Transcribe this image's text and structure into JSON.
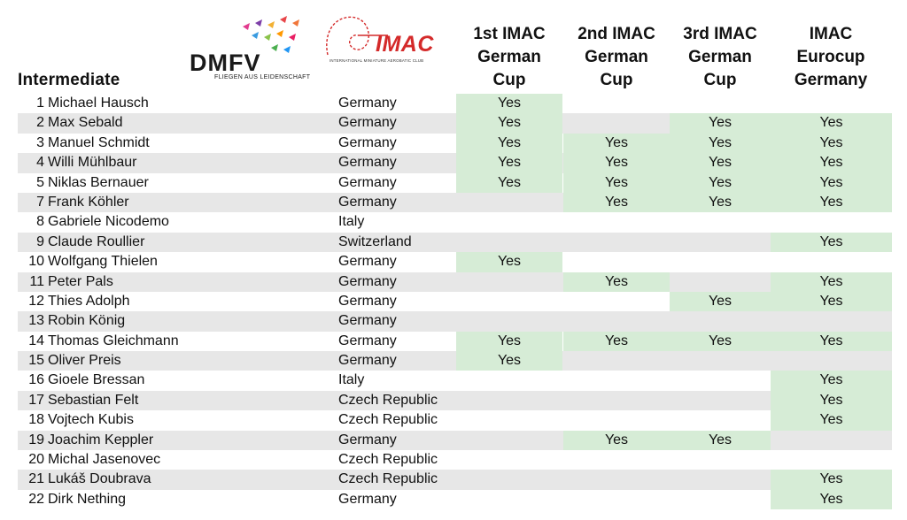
{
  "title": "Intermediate",
  "logos": {
    "dmfv_word": "DMFV",
    "dmfv_sub": "FLIEGEN AUS LEIDENSCHAFT",
    "imac_word": "IMAC",
    "imac_sub": "INTERNATIONAL MINIATURE AEROBATIC CLUB"
  },
  "columns": [
    {
      "lines": [
        "1st IMAC",
        "German",
        "Cup"
      ]
    },
    {
      "lines": [
        "2nd IMAC",
        "German",
        "Cup"
      ]
    },
    {
      "lines": [
        "3rd IMAC",
        "German",
        "Cup"
      ]
    },
    {
      "lines": [
        "IMAC",
        "Eurocup",
        "Germany"
      ]
    }
  ],
  "colors": {
    "grey": "#e7e7e7",
    "green": "#d6ecd6"
  },
  "rows": [
    {
      "num": "1",
      "name": "Michael Hausch",
      "country": "Germany",
      "grey": false,
      "cups": [
        "Yes",
        "",
        "",
        ""
      ]
    },
    {
      "num": "2",
      "name": "Max Sebald",
      "country": "Germany",
      "grey": true,
      "cups": [
        "Yes",
        "",
        "Yes",
        "Yes"
      ]
    },
    {
      "num": "3",
      "name": "Manuel Schmidt",
      "country": "Germany",
      "grey": false,
      "cups": [
        "Yes",
        "Yes",
        "Yes",
        "Yes"
      ]
    },
    {
      "num": "4",
      "name": "Willi Mühlbaur",
      "country": "Germany",
      "grey": true,
      "cups": [
        "Yes",
        "Yes",
        "Yes",
        "Yes"
      ]
    },
    {
      "num": "5",
      "name": "Niklas Bernauer",
      "country": "Germany",
      "grey": false,
      "cups": [
        "Yes",
        "Yes",
        "Yes",
        "Yes"
      ]
    },
    {
      "num": "7",
      "name": "Frank Köhler",
      "country": "Germany",
      "grey": true,
      "cups": [
        "",
        "Yes",
        "Yes",
        "Yes"
      ]
    },
    {
      "num": "8",
      "name": "Gabriele Nicodemo",
      "country": "Italy",
      "grey": false,
      "cups": [
        "",
        "",
        "",
        ""
      ]
    },
    {
      "num": "9",
      "name": "Claude Roullier",
      "country": "Switzerland",
      "grey": true,
      "cups": [
        "",
        "",
        "",
        "Yes"
      ]
    },
    {
      "num": "10",
      "name": "Wolfgang Thielen",
      "country": "Germany",
      "grey": false,
      "cups": [
        "Yes",
        "",
        "",
        ""
      ]
    },
    {
      "num": "11",
      "name": "Peter Pals",
      "country": "Germany",
      "grey": true,
      "cups": [
        "",
        "Yes",
        "",
        "Yes"
      ]
    },
    {
      "num": "12",
      "name": "Thies Adolph",
      "country": "Germany",
      "grey": false,
      "cups": [
        "",
        "",
        "Yes",
        "Yes"
      ]
    },
    {
      "num": "13",
      "name": "Robin König",
      "country": "Germany",
      "grey": true,
      "cups": [
        "",
        "",
        "",
        ""
      ]
    },
    {
      "num": "14",
      "name": "Thomas Gleichmann",
      "country": "Germany",
      "grey": false,
      "cups": [
        "Yes",
        "Yes",
        "Yes",
        "Yes"
      ]
    },
    {
      "num": "15",
      "name": "Oliver Preis",
      "country": "Germany",
      "grey": true,
      "cups": [
        "Yes",
        "",
        "",
        ""
      ]
    },
    {
      "num": "16",
      "name": "Gioele Bressan",
      "country": "Italy",
      "grey": false,
      "cups": [
        "",
        "",
        "",
        "Yes"
      ]
    },
    {
      "num": "17",
      "name": "Sebastian Felt",
      "country": "Czech Republic",
      "grey": true,
      "cups": [
        "",
        "",
        "",
        "Yes"
      ]
    },
    {
      "num": "18",
      "name": "Vojtech Kubis",
      "country": "Czech Republic",
      "grey": false,
      "cups": [
        "",
        "",
        "",
        "Yes"
      ]
    },
    {
      "num": "19",
      "name": "Joachim Keppler",
      "country": "Germany",
      "grey": true,
      "cups": [
        "",
        "Yes",
        "Yes",
        ""
      ]
    },
    {
      "num": "20",
      "name": "Michal Jasenovec",
      "country": "Czech Republic",
      "grey": false,
      "cups": [
        "",
        "",
        "",
        ""
      ]
    },
    {
      "num": "21",
      "name": "Lukáš Doubrava",
      "country": "Czech Republic",
      "grey": true,
      "cups": [
        "",
        "",
        "",
        "Yes"
      ]
    },
    {
      "num": "22",
      "name": "Dirk Nething",
      "country": "Germany",
      "grey": false,
      "cups": [
        "",
        "",
        "",
        "Yes"
      ]
    }
  ]
}
